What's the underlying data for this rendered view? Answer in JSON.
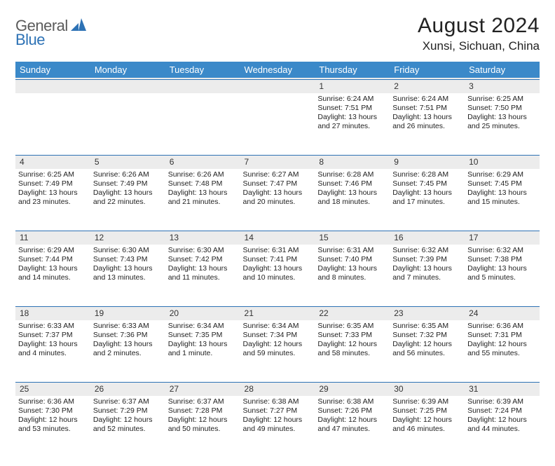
{
  "logo": {
    "part1": "General",
    "part2": "Blue"
  },
  "title": "August 2024",
  "subtitle": "Xunsi, Sichuan, China",
  "colors": {
    "header_bg": "#3b89c9",
    "accent": "#2d72b5",
    "daynum_bg": "#ececec",
    "text": "#222222",
    "logo_gray": "#5b5b5b"
  },
  "day_headers": [
    "Sunday",
    "Monday",
    "Tuesday",
    "Wednesday",
    "Thursday",
    "Friday",
    "Saturday"
  ],
  "weeks": [
    {
      "nums": [
        "",
        "",
        "",
        "",
        "1",
        "2",
        "3"
      ],
      "cells": [
        null,
        null,
        null,
        null,
        {
          "sunrise": "6:24 AM",
          "sunset": "7:51 PM",
          "dl1": "Daylight: 13 hours",
          "dl2": "and 27 minutes."
        },
        {
          "sunrise": "6:24 AM",
          "sunset": "7:51 PM",
          "dl1": "Daylight: 13 hours",
          "dl2": "and 26 minutes."
        },
        {
          "sunrise": "6:25 AM",
          "sunset": "7:50 PM",
          "dl1": "Daylight: 13 hours",
          "dl2": "and 25 minutes."
        }
      ]
    },
    {
      "nums": [
        "4",
        "5",
        "6",
        "7",
        "8",
        "9",
        "10"
      ],
      "cells": [
        {
          "sunrise": "6:25 AM",
          "sunset": "7:49 PM",
          "dl1": "Daylight: 13 hours",
          "dl2": "and 23 minutes."
        },
        {
          "sunrise": "6:26 AM",
          "sunset": "7:49 PM",
          "dl1": "Daylight: 13 hours",
          "dl2": "and 22 minutes."
        },
        {
          "sunrise": "6:26 AM",
          "sunset": "7:48 PM",
          "dl1": "Daylight: 13 hours",
          "dl2": "and 21 minutes."
        },
        {
          "sunrise": "6:27 AM",
          "sunset": "7:47 PM",
          "dl1": "Daylight: 13 hours",
          "dl2": "and 20 minutes."
        },
        {
          "sunrise": "6:28 AM",
          "sunset": "7:46 PM",
          "dl1": "Daylight: 13 hours",
          "dl2": "and 18 minutes."
        },
        {
          "sunrise": "6:28 AM",
          "sunset": "7:45 PM",
          "dl1": "Daylight: 13 hours",
          "dl2": "and 17 minutes."
        },
        {
          "sunrise": "6:29 AM",
          "sunset": "7:45 PM",
          "dl1": "Daylight: 13 hours",
          "dl2": "and 15 minutes."
        }
      ]
    },
    {
      "nums": [
        "11",
        "12",
        "13",
        "14",
        "15",
        "16",
        "17"
      ],
      "cells": [
        {
          "sunrise": "6:29 AM",
          "sunset": "7:44 PM",
          "dl1": "Daylight: 13 hours",
          "dl2": "and 14 minutes."
        },
        {
          "sunrise": "6:30 AM",
          "sunset": "7:43 PM",
          "dl1": "Daylight: 13 hours",
          "dl2": "and 13 minutes."
        },
        {
          "sunrise": "6:30 AM",
          "sunset": "7:42 PM",
          "dl1": "Daylight: 13 hours",
          "dl2": "and 11 minutes."
        },
        {
          "sunrise": "6:31 AM",
          "sunset": "7:41 PM",
          "dl1": "Daylight: 13 hours",
          "dl2": "and 10 minutes."
        },
        {
          "sunrise": "6:31 AM",
          "sunset": "7:40 PM",
          "dl1": "Daylight: 13 hours",
          "dl2": "and 8 minutes."
        },
        {
          "sunrise": "6:32 AM",
          "sunset": "7:39 PM",
          "dl1": "Daylight: 13 hours",
          "dl2": "and 7 minutes."
        },
        {
          "sunrise": "6:32 AM",
          "sunset": "7:38 PM",
          "dl1": "Daylight: 13 hours",
          "dl2": "and 5 minutes."
        }
      ]
    },
    {
      "nums": [
        "18",
        "19",
        "20",
        "21",
        "22",
        "23",
        "24"
      ],
      "cells": [
        {
          "sunrise": "6:33 AM",
          "sunset": "7:37 PM",
          "dl1": "Daylight: 13 hours",
          "dl2": "and 4 minutes."
        },
        {
          "sunrise": "6:33 AM",
          "sunset": "7:36 PM",
          "dl1": "Daylight: 13 hours",
          "dl2": "and 2 minutes."
        },
        {
          "sunrise": "6:34 AM",
          "sunset": "7:35 PM",
          "dl1": "Daylight: 13 hours",
          "dl2": "and 1 minute."
        },
        {
          "sunrise": "6:34 AM",
          "sunset": "7:34 PM",
          "dl1": "Daylight: 12 hours",
          "dl2": "and 59 minutes."
        },
        {
          "sunrise": "6:35 AM",
          "sunset": "7:33 PM",
          "dl1": "Daylight: 12 hours",
          "dl2": "and 58 minutes."
        },
        {
          "sunrise": "6:35 AM",
          "sunset": "7:32 PM",
          "dl1": "Daylight: 12 hours",
          "dl2": "and 56 minutes."
        },
        {
          "sunrise": "6:36 AM",
          "sunset": "7:31 PM",
          "dl1": "Daylight: 12 hours",
          "dl2": "and 55 minutes."
        }
      ]
    },
    {
      "nums": [
        "25",
        "26",
        "27",
        "28",
        "29",
        "30",
        "31"
      ],
      "cells": [
        {
          "sunrise": "6:36 AM",
          "sunset": "7:30 PM",
          "dl1": "Daylight: 12 hours",
          "dl2": "and 53 minutes."
        },
        {
          "sunrise": "6:37 AM",
          "sunset": "7:29 PM",
          "dl1": "Daylight: 12 hours",
          "dl2": "and 52 minutes."
        },
        {
          "sunrise": "6:37 AM",
          "sunset": "7:28 PM",
          "dl1": "Daylight: 12 hours",
          "dl2": "and 50 minutes."
        },
        {
          "sunrise": "6:38 AM",
          "sunset": "7:27 PM",
          "dl1": "Daylight: 12 hours",
          "dl2": "and 49 minutes."
        },
        {
          "sunrise": "6:38 AM",
          "sunset": "7:26 PM",
          "dl1": "Daylight: 12 hours",
          "dl2": "and 47 minutes."
        },
        {
          "sunrise": "6:39 AM",
          "sunset": "7:25 PM",
          "dl1": "Daylight: 12 hours",
          "dl2": "and 46 minutes."
        },
        {
          "sunrise": "6:39 AM",
          "sunset": "7:24 PM",
          "dl1": "Daylight: 12 hours",
          "dl2": "and 44 minutes."
        }
      ]
    }
  ],
  "labels": {
    "sunrise": "Sunrise: ",
    "sunset": "Sunset: "
  }
}
